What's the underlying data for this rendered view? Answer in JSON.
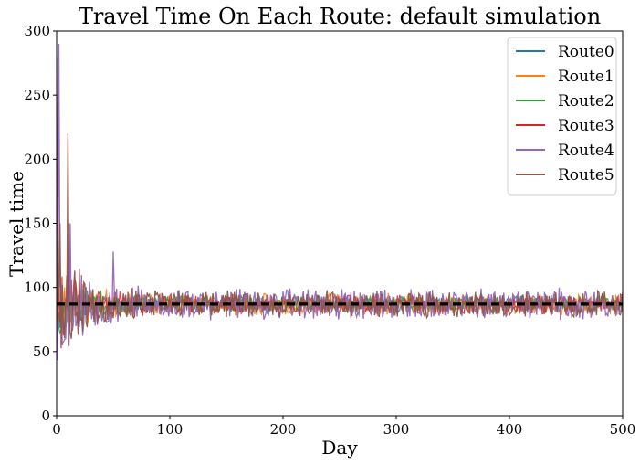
{
  "chart_data": {
    "type": "line",
    "title": "Travel Time On Each Route: default simulation",
    "xlabel": "Day",
    "ylabel": "Travel time",
    "xlim": [
      0,
      500
    ],
    "ylim": [
      0,
      300
    ],
    "xticks": [
      "0",
      "100",
      "200",
      "300",
      "400",
      "500"
    ],
    "yticks": [
      "0",
      "50",
      "100",
      "150",
      "200",
      "250",
      "300"
    ],
    "grid": false,
    "legend_position": "top-right",
    "reference_line": {
      "y": 87,
      "style": "dashed",
      "color": "#000000"
    },
    "series": [
      {
        "name": "Route0",
        "color": "#1f77b4",
        "amplitude": 7,
        "seed": 11
      },
      {
        "name": "Route1",
        "color": "#ff7f0e",
        "amplitude": 9,
        "seed": 23
      },
      {
        "name": "Route2",
        "color": "#2ca02c",
        "amplitude": 7,
        "seed": 37
      },
      {
        "name": "Route3",
        "color": "#d62728",
        "amplitude": 8,
        "seed": 41
      },
      {
        "name": "Route4",
        "color": "#9467bd",
        "amplitude": 13,
        "seed": 53
      },
      {
        "name": "Route5",
        "color": "#8c564b",
        "amplitude": 11,
        "seed": 67
      }
    ],
    "notable_points": {
      "Route4": [
        [
          0,
          280
        ],
        [
          2,
          290
        ],
        [
          5,
          55
        ],
        [
          8,
          60
        ],
        [
          12,
          150
        ],
        [
          50,
          128
        ]
      ],
      "Route5": [
        [
          0,
          250
        ],
        [
          3,
          150
        ],
        [
          10,
          220
        ],
        [
          13,
          60
        ],
        [
          20,
          115
        ]
      ],
      "Route1": [
        [
          11,
          150
        ],
        [
          3,
          120
        ]
      ]
    }
  }
}
